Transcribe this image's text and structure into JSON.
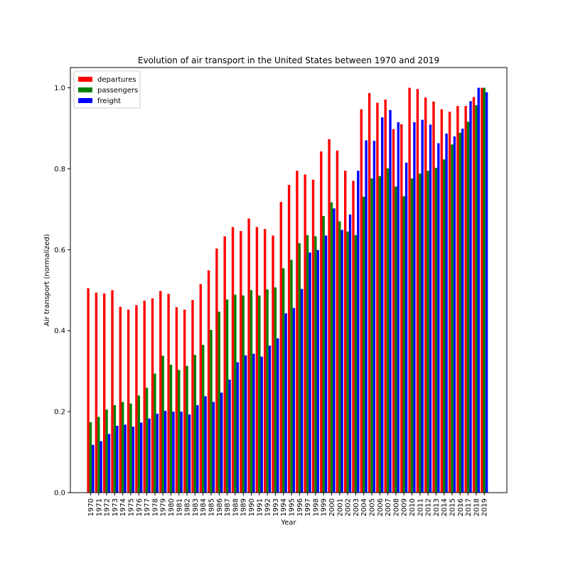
{
  "chart_data": {
    "type": "bar",
    "title": "Evolution of air transport in the United States between 1970 and 2019",
    "xlabel": "Year",
    "ylabel": "Air transport (normalized)",
    "ylim": [
      0,
      1.05
    ],
    "yticks": [
      "0.0",
      "0.2",
      "0.4",
      "0.6",
      "0.8",
      "1.0"
    ],
    "grid": false,
    "legend_position": "top-left",
    "categories": [
      "1970",
      "1971",
      "1972",
      "1973",
      "1974",
      "1975",
      "1976",
      "1977",
      "1978",
      "1979",
      "1980",
      "1981",
      "1982",
      "1983",
      "1984",
      "1985",
      "1986",
      "1987",
      "1988",
      "1989",
      "1990",
      "1991",
      "1992",
      "1993",
      "1994",
      "1995",
      "1996",
      "1997",
      "1998",
      "1999",
      "2000",
      "2001",
      "2002",
      "2003",
      "2004",
      "2005",
      "2006",
      "2007",
      "2008",
      "2009",
      "2010",
      "2011",
      "2012",
      "2013",
      "2014",
      "2015",
      "2016",
      "2017",
      "2018",
      "2019"
    ],
    "series": [
      {
        "name": "departures",
        "color": "#ff0000",
        "values": [
          0.505,
          0.494,
          0.492,
          0.5,
          0.459,
          0.452,
          0.463,
          0.474,
          0.48,
          0.498,
          0.491,
          0.458,
          0.452,
          0.476,
          0.515,
          0.549,
          0.603,
          0.633,
          0.656,
          0.646,
          0.677,
          0.656,
          0.651,
          0.635,
          0.718,
          0.76,
          0.795,
          0.786,
          0.773,
          0.843,
          0.873,
          0.845,
          0.795,
          0.77,
          0.947,
          0.987,
          0.963,
          0.971,
          0.898,
          0.91,
          1.0,
          0.997,
          0.976,
          0.966,
          0.947,
          0.941,
          0.955,
          0.955,
          0.977,
          1.0
        ]
      },
      {
        "name": "passengers",
        "color": "#008000",
        "values": [
          0.174,
          0.187,
          0.205,
          0.216,
          0.224,
          0.22,
          0.24,
          0.259,
          0.294,
          0.338,
          0.316,
          0.303,
          0.313,
          0.34,
          0.365,
          0.402,
          0.447,
          0.477,
          0.489,
          0.487,
          0.5,
          0.487,
          0.502,
          0.507,
          0.554,
          0.575,
          0.616,
          0.636,
          0.633,
          0.683,
          0.717,
          0.67,
          0.645,
          0.636,
          0.731,
          0.776,
          0.782,
          0.801,
          0.756,
          0.732,
          0.776,
          0.788,
          0.795,
          0.802,
          0.823,
          0.86,
          0.889,
          0.916,
          0.957,
          1.0
        ]
      },
      {
        "name": "freight",
        "color": "#0000ff",
        "values": [
          0.118,
          0.127,
          0.145,
          0.165,
          0.168,
          0.163,
          0.173,
          0.183,
          0.195,
          0.202,
          0.2,
          0.2,
          0.193,
          0.216,
          0.238,
          0.224,
          0.247,
          0.279,
          0.322,
          0.339,
          0.343,
          0.336,
          0.363,
          0.381,
          0.443,
          0.456,
          0.503,
          0.593,
          0.599,
          0.635,
          0.702,
          0.649,
          0.687,
          0.795,
          0.87,
          0.869,
          0.927,
          0.945,
          0.915,
          0.815,
          0.915,
          0.921,
          0.909,
          0.863,
          0.887,
          0.88,
          0.899,
          0.967,
          1.0,
          0.989
        ]
      }
    ]
  }
}
